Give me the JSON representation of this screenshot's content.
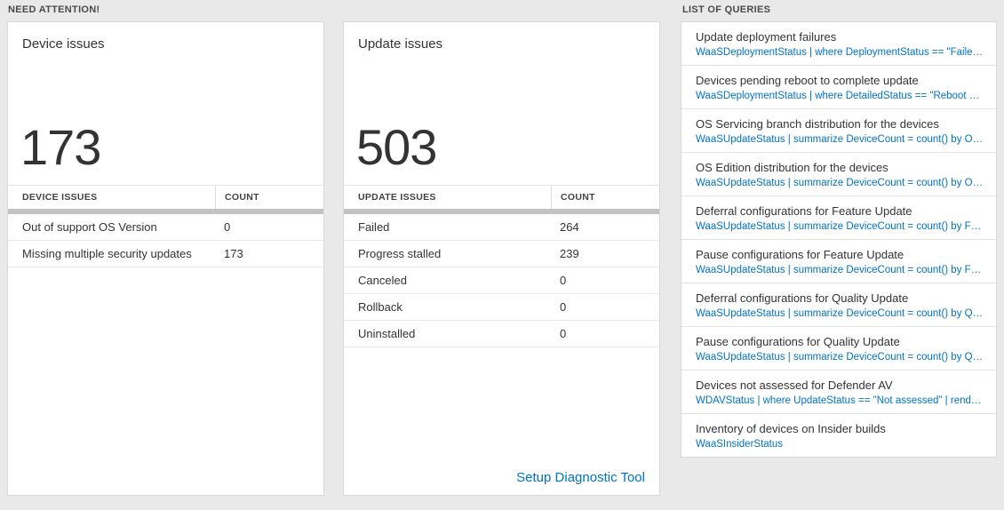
{
  "colors": {
    "background": "#e9e9e9",
    "accent_blue": "#0072c6",
    "thick_divider_gray": "#c2c2c2",
    "text_dark": "#333333"
  },
  "sections": {
    "need_attention_title": "NEED ATTENTION!",
    "queries_title": "LIST OF QUERIES"
  },
  "device_card": {
    "title": "Device issues",
    "count": "173",
    "table": {
      "name_header": "DEVICE ISSUES",
      "count_header": "COUNT",
      "rows": [
        {
          "label": "Out of support OS Version",
          "count": "0"
        },
        {
          "label": "Missing multiple security updates",
          "count": "173"
        }
      ]
    }
  },
  "update_card": {
    "title": "Update issues",
    "count": "503",
    "table": {
      "name_header": "UPDATE ISSUES",
      "count_header": "COUNT",
      "rows": [
        {
          "label": "Failed",
          "count": "264"
        },
        {
          "label": "Progress stalled",
          "count": "239"
        },
        {
          "label": "Canceled",
          "count": "0"
        },
        {
          "label": "Rollback",
          "count": "0"
        },
        {
          "label": "Uninstalled",
          "count": "0"
        }
      ]
    },
    "footer_link": "Setup Diagnostic Tool"
  },
  "queries": {
    "items": [
      {
        "title": "Update deployment failures",
        "query": "WaaSDeploymentStatus | where DeploymentStatus == \"Failed\" |..."
      },
      {
        "title": "Devices pending reboot to complete update",
        "query": "WaaSDeploymentStatus | where DetailedStatus == \"Reboot pend..."
      },
      {
        "title": "OS Servicing branch distribution for the devices",
        "query": "WaaSUpdateStatus | summarize DeviceCount = count() by OSSer..."
      },
      {
        "title": "OS Edition distribution for the devices",
        "query": "WaaSUpdateStatus | summarize DeviceCount = count() by OSEdit..."
      },
      {
        "title": "Deferral configurations for Feature Update",
        "query": "WaaSUpdateStatus | summarize DeviceCount = count() by Featur..."
      },
      {
        "title": "Pause configurations for Feature Update",
        "query": "WaaSUpdateStatus | summarize DeviceCount = count() by Featur..."
      },
      {
        "title": "Deferral configurations for Quality Update",
        "query": "WaaSUpdateStatus | summarize DeviceCount = count() by Qualit..."
      },
      {
        "title": "Pause configurations for Quality Update",
        "query": "WaaSUpdateStatus | summarize DeviceCount = count() by Qualit..."
      },
      {
        "title": "Devices not assessed for Defender AV",
        "query": "WDAVStatus | where UpdateStatus == \"Not assessed\" | render ta..."
      },
      {
        "title": "Inventory of devices on Insider builds",
        "query": "WaaSInsiderStatus"
      }
    ]
  }
}
